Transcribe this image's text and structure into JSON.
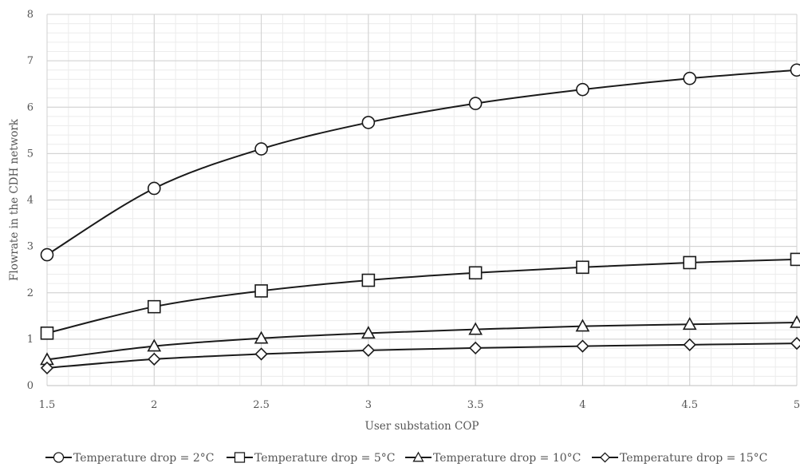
{
  "chart_data": {
    "type": "line",
    "title": "",
    "xlabel": "User substation COP",
    "ylabel": "Flowrate in the CDH network",
    "x": [
      1.5,
      2,
      2.5,
      3,
      3.5,
      4,
      4.5,
      5
    ],
    "x_tick_labels": [
      "1.5",
      "2",
      "2.5",
      "3",
      "3.5",
      "4",
      "4.5",
      "5"
    ],
    "xlim": [
      1.5,
      5
    ],
    "ylim": [
      0,
      8
    ],
    "y_ticks": [
      0,
      1,
      2,
      3,
      4,
      5,
      6,
      7,
      8
    ],
    "grid": true,
    "legend_position": "bottom",
    "series": [
      {
        "name": "Temperature drop = 2°C",
        "marker": "circle",
        "values": [
          2.82,
          4.25,
          5.1,
          5.67,
          6.08,
          6.38,
          6.62,
          6.8
        ]
      },
      {
        "name": "Temperature drop = 5°C",
        "marker": "square",
        "values": [
          1.13,
          1.7,
          2.04,
          2.27,
          2.43,
          2.55,
          2.65,
          2.72
        ]
      },
      {
        "name": "Temperature drop = 10°C",
        "marker": "triangle",
        "values": [
          0.56,
          0.85,
          1.02,
          1.13,
          1.21,
          1.28,
          1.32,
          1.36
        ]
      },
      {
        "name": "Temperature drop = 15°C",
        "marker": "diamond",
        "values": [
          0.38,
          0.57,
          0.68,
          0.76,
          0.81,
          0.85,
          0.88,
          0.91
        ]
      }
    ]
  }
}
